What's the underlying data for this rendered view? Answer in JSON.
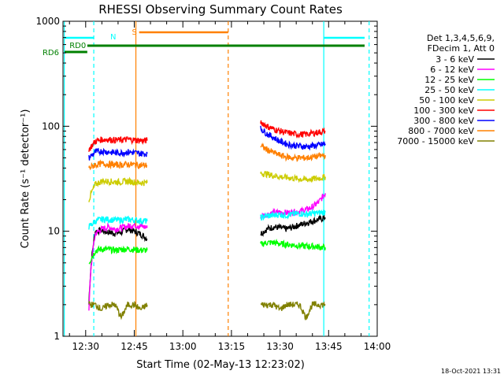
{
  "chart_data": {
    "type": "line",
    "title": "RHESSI Observing Summary Count Rates",
    "xlabel": "Start Time (02-May-13 12:23:02)",
    "ylabel": "Count Rate (s⁻¹ detector⁻¹)",
    "yscale": "log",
    "ylim": [
      1,
      1000
    ],
    "xlim_minutes": [
      0,
      97
    ],
    "x_tick_labels": [
      "12:30",
      "12:45",
      "13:00",
      "13:15",
      "13:30",
      "13:45",
      "14:00"
    ],
    "x_tick_minutes": [
      7,
      22,
      37,
      52,
      67,
      82,
      97
    ],
    "y_tick_labels": [
      "1",
      "10",
      "100",
      "1000"
    ],
    "y_tick_values": [
      1,
      10,
      100,
      1000
    ],
    "legend_header": [
      "Det 1,3,4,5,6,9,",
      "FDecim 1, Att 0"
    ],
    "legend_position": "right",
    "series": [
      {
        "name": "3 - 6 keV",
        "color": "#000000",
        "x": [
          8,
          10,
          12,
          14,
          16,
          18,
          20,
          22,
          24,
          26
        ],
        "y": [
          2.0,
          10,
          10.2,
          9.8,
          9.6,
          9.8,
          10.5,
          10.0,
          9.4,
          8.5
        ],
        "x2": [
          61,
          63,
          65,
          67,
          69,
          71,
          73,
          75,
          77,
          79,
          81
        ],
        "y2": [
          9.5,
          10.5,
          11,
          10.8,
          10.5,
          11,
          11.5,
          12,
          12.5,
          13,
          13.5
        ]
      },
      {
        "name": "6 - 12 keV",
        "color": "#ff00ff",
        "x": [
          8,
          10,
          12,
          14,
          16,
          18,
          20,
          22,
          24,
          26
        ],
        "y": [
          1.8,
          9.5,
          10.5,
          11,
          10.5,
          10.8,
          11.2,
          11.5,
          11.2,
          10.8
        ],
        "x2": [
          61,
          63,
          65,
          67,
          69,
          71,
          73,
          75,
          77,
          79,
          81
        ],
        "y2": [
          14,
          14.5,
          15,
          15.2,
          15,
          15.2,
          15.5,
          16,
          17,
          19,
          23
        ]
      },
      {
        "name": "12 - 25 keV",
        "color": "#00ff00",
        "x": [
          8,
          10,
          12,
          14,
          16,
          18,
          20,
          22,
          24,
          26
        ],
        "y": [
          5,
          6.5,
          6.8,
          6.7,
          6.6,
          6.7,
          6.8,
          6.7,
          6.6,
          6.6
        ],
        "x2": [
          61,
          63,
          65,
          67,
          69,
          71,
          73,
          75,
          77,
          79,
          81
        ],
        "y2": [
          7.5,
          7.8,
          7.8,
          7.6,
          7.5,
          7.4,
          7.3,
          7.2,
          7.2,
          7.1,
          7.0
        ]
      },
      {
        "name": "25 - 50 keV",
        "color": "#00ffff",
        "x": [
          8,
          10,
          12,
          14,
          16,
          18,
          20,
          22,
          24,
          26
        ],
        "y": [
          11,
          12.5,
          13,
          13,
          12.8,
          12.8,
          13,
          12.8,
          12.6,
          12.5
        ],
        "x2": [
          61,
          63,
          65,
          67,
          69,
          71,
          73,
          75,
          77,
          79,
          81
        ],
        "y2": [
          13.5,
          14,
          14.2,
          14.5,
          14.2,
          14.5,
          14.8,
          14.5,
          14.8,
          15,
          15.2
        ]
      },
      {
        "name": "50 - 100 keV",
        "color": "#cccc00",
        "x": [
          8,
          10,
          12,
          14,
          16,
          18,
          20,
          22,
          24,
          26
        ],
        "y": [
          20,
          28,
          30,
          30,
          29.5,
          29.5,
          30,
          29.5,
          29,
          29
        ],
        "x2": [
          61,
          63,
          65,
          67,
          69,
          71,
          73,
          75,
          77,
          79,
          81
        ],
        "y2": [
          36,
          35,
          34,
          33,
          32.5,
          32,
          31.5,
          31,
          31.5,
          32,
          33
        ]
      },
      {
        "name": "100 - 300 keV",
        "color": "#ff0000",
        "x": [
          8,
          10,
          12,
          14,
          16,
          18,
          20,
          22,
          24,
          26
        ],
        "y": [
          60,
          72,
          75,
          75,
          74,
          74,
          75,
          74,
          73,
          73
        ],
        "x2": [
          61,
          63,
          65,
          67,
          69,
          71,
          73,
          75,
          77,
          79,
          81
        ],
        "y2": [
          110,
          100,
          94,
          90,
          87,
          85,
          84,
          84,
          86,
          88,
          90
        ]
      },
      {
        "name": "300 - 800 keV",
        "color": "#0000ff",
        "x": [
          8,
          10,
          12,
          14,
          16,
          18,
          20,
          22,
          24,
          26
        ],
        "y": [
          50,
          57,
          58,
          57,
          56,
          56,
          57,
          56,
          55,
          55
        ],
        "x2": [
          61,
          63,
          65,
          67,
          69,
          71,
          73,
          75,
          77,
          79,
          81
        ],
        "y2": [
          95,
          85,
          78,
          72,
          68,
          66,
          65,
          64,
          65,
          66,
          68
        ]
      },
      {
        "name": "800 - 7000 keV",
        "color": "#ff8000",
        "x": [
          8,
          10,
          12,
          14,
          16,
          18,
          20,
          22,
          24,
          26
        ],
        "y": [
          40,
          43,
          44,
          43.5,
          43,
          43,
          43.5,
          43,
          42.5,
          42.5
        ],
        "x2": [
          61,
          63,
          65,
          67,
          69,
          71,
          73,
          75,
          77,
          79,
          81
        ],
        "y2": [
          65,
          60,
          56,
          53,
          51,
          50,
          50,
          50,
          51,
          52,
          53
        ]
      },
      {
        "name": "7000 - 15000 keV",
        "color": "#808000",
        "x": [
          8,
          10,
          12,
          14,
          16,
          18,
          20,
          22,
          24,
          26
        ],
        "y": [
          2,
          2,
          1.8,
          2,
          2,
          1.5,
          2,
          2,
          1.8,
          2
        ],
        "x2": [
          61,
          63,
          65,
          67,
          69,
          71,
          73,
          75,
          77,
          79,
          81
        ],
        "y2": [
          2,
          2,
          2,
          1.8,
          2,
          2,
          2,
          1.5,
          2,
          2,
          2
        ]
      }
    ],
    "annotations": [
      "N",
      "S",
      "RD0",
      "RD6"
    ],
    "footer": "18-Oct-2021 13:31"
  }
}
